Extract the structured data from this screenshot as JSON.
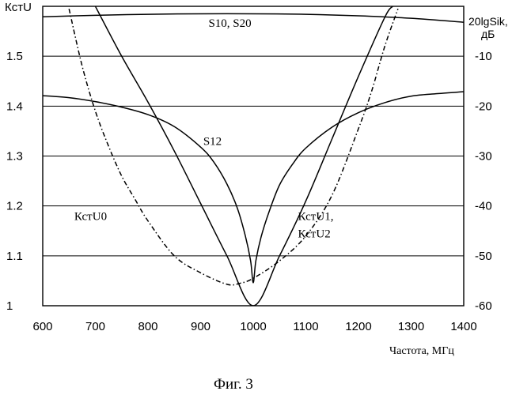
{
  "caption": "Фиг. 3",
  "chart_data": {
    "type": "line",
    "xlabel": "Частота, МГц",
    "ylabel_left": "КстU",
    "ylabel_right_line1": "20lgSik,",
    "ylabel_right_line2": "дБ",
    "xlim": [
      600,
      1400
    ],
    "ylim_left": [
      1.0,
      1.6
    ],
    "ylim_right": [
      -60,
      0
    ],
    "x_ticks": [
      "600",
      "700",
      "800",
      "900",
      "1000",
      "1100",
      "1200",
      "1300",
      "1400"
    ],
    "y_left_ticks": [
      "1",
      "1.1",
      "1.2",
      "1.3",
      "1.4",
      "1.5"
    ],
    "y_right_ticks": [
      "-10",
      "-20",
      "-30",
      "-40",
      "-50",
      "-60"
    ],
    "grid": "horizontal",
    "series": [
      {
        "name": "S10, S20",
        "axis": "right",
        "style": "solid",
        "x": [
          600,
          700,
          800,
          900,
          1000,
          1100,
          1200,
          1300,
          1400
        ],
        "y": [
          -2.1,
          -1.8,
          -1.6,
          -1.5,
          -1.5,
          -1.6,
          -1.9,
          -2.4,
          -3.2
        ]
      },
      {
        "name": "S12",
        "axis": "right",
        "style": "solid",
        "x": [
          600,
          650,
          700,
          750,
          800,
          850,
          900,
          925,
          950,
          970,
          985,
          995,
          1000,
          1005,
          1015,
          1030,
          1050,
          1075,
          1100,
          1150,
          1200,
          1250,
          1300,
          1350,
          1400
        ],
        "y": [
          -17.9,
          -18.3,
          -19.1,
          -20.2,
          -21.7,
          -24.1,
          -28.2,
          -31.2,
          -35.6,
          -40.5,
          -46.0,
          -51.0,
          -55.4,
          -51.0,
          -46.2,
          -41.2,
          -35.8,
          -31.6,
          -28.4,
          -24.2,
          -21.3,
          -19.3,
          -18.0,
          -17.5,
          -17.1
        ]
      },
      {
        "name": "КстU0",
        "axis": "left",
        "style": "dash-dot",
        "x": [
          650,
          675,
          700,
          725,
          750,
          775,
          800,
          850,
          900,
          950,
          975,
          1000,
          1050,
          1100,
          1150,
          1200,
          1225,
          1250,
          1275
        ],
        "y": [
          1.595,
          1.48,
          1.39,
          1.32,
          1.26,
          1.214,
          1.17,
          1.1,
          1.066,
          1.043,
          1.045,
          1.055,
          1.09,
          1.14,
          1.222,
          1.355,
          1.43,
          1.52,
          1.595
        ]
      },
      {
        "name": "КстU1,",
        "name_line2": "КстU2",
        "axis": "left",
        "style": "solid",
        "x": [
          700,
          750,
          800,
          850,
          900,
          950,
          1000,
          1050,
          1100,
          1150,
          1200,
          1250,
          1265
        ],
        "y": [
          1.6,
          1.5,
          1.408,
          1.31,
          1.205,
          1.1,
          1.0,
          1.1,
          1.21,
          1.335,
          1.46,
          1.578,
          1.6
        ]
      }
    ],
    "annotations": [
      {
        "text": "S10, S20",
        "x": 915,
        "y": 1.567
      },
      {
        "text": "S12",
        "x": 905,
        "y": 1.33
      },
      {
        "text": "КстU0",
        "x": 660,
        "y": 1.18
      },
      {
        "text": "КстU1,",
        "x": 1085,
        "y": 1.18
      },
      {
        "text": "КстU2",
        "x": 1085,
        "y": 1.145
      }
    ]
  }
}
